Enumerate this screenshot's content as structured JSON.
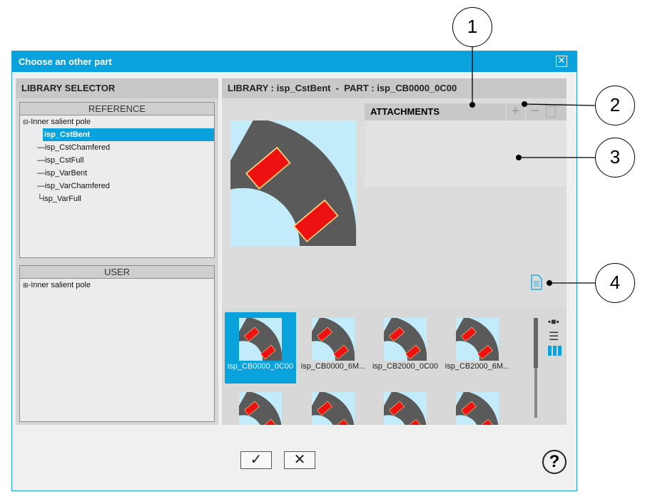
{
  "dialog": {
    "title": "Choose an other part",
    "close_icon": "close-icon"
  },
  "library_selector": {
    "title": "LIBRARY SELECTOR",
    "reference": {
      "title": "REFERENCE",
      "root": "Inner salient pole",
      "items": [
        "isp_CstBent",
        "isp_CstChamfered",
        "isp_CstFull",
        "isp_VarBent",
        "isp_VarChamfered",
        "isp_VarFull"
      ],
      "selected": "isp_CstBent"
    },
    "user": {
      "title": "USER",
      "root": "Inner salient pole"
    }
  },
  "preview": {
    "header": "LIBRARY : isp_CstBent  -  PART : isp_CB0000_0C00"
  },
  "attachments": {
    "title": "ATTACHMENTS",
    "add": "+",
    "remove": "−"
  },
  "thumbnails": {
    "items": [
      "isp_CB0000_0C00",
      "isp_CB0000_6M...",
      "isp_CB2000_0C00",
      "isp_CB2000_6M..."
    ],
    "selected": "isp_CB0000_0C00"
  },
  "callouts": [
    "1",
    "2",
    "3",
    "4"
  ],
  "footer": {
    "ok": "✓",
    "cancel": "✕",
    "help": "?"
  },
  "colors": {
    "accent": "#0aa2dc",
    "part_gray": "#5a5a5a",
    "magnet_red": "#ee1111",
    "air_blue": "#c3ecfa"
  }
}
